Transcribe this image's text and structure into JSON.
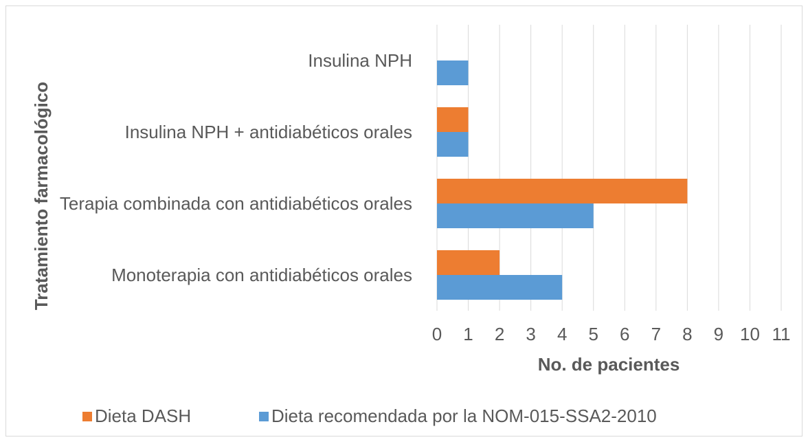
{
  "chart_data": {
    "type": "barh",
    "categories": [
      "Insulina NPH",
      "Insulina NPH + antidiabéticos orales",
      "Terapia combinada con antidiabéticos orales",
      "Monoterapia con antidiabéticos orales"
    ],
    "series": [
      {
        "name": "Dieta DASH",
        "color": "#ed7d31",
        "values": [
          0,
          1,
          8,
          2
        ]
      },
      {
        "name": "Dieta recomendada por la NOM-015-SSA2-2010",
        "color": "#5b9bd5",
        "values": [
          1,
          1,
          5,
          4
        ]
      }
    ],
    "xlabel": "No. de pacientes",
    "ylabel": "Tratamiento farmacológico",
    "xlim": [
      0,
      11
    ],
    "xticks": [
      0,
      1,
      2,
      3,
      4,
      5,
      6,
      7,
      8,
      9,
      10,
      11
    ],
    "grid": true,
    "legend": "bottom"
  }
}
